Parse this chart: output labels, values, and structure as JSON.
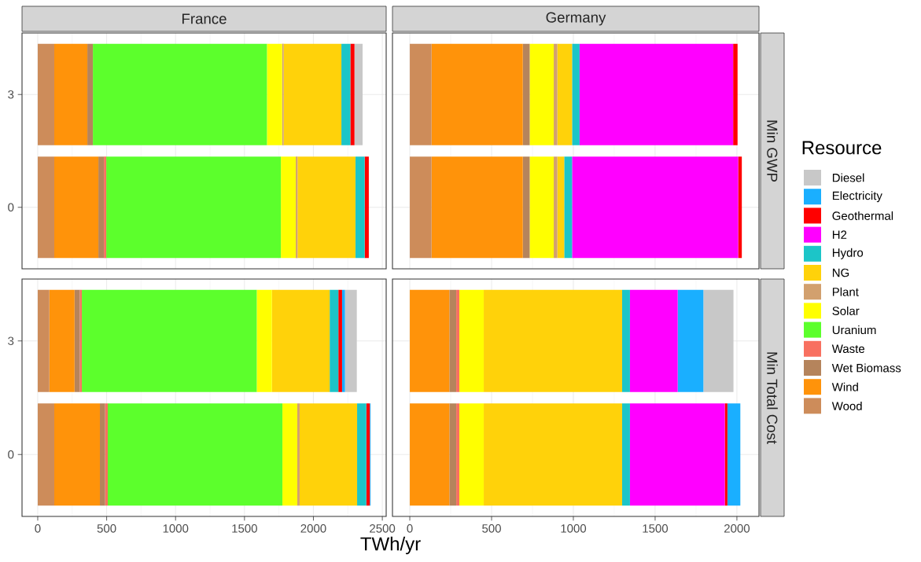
{
  "chart_data": [
    {
      "type": "bar",
      "orientation": "horizontal",
      "stacked": true,
      "title": "France",
      "categories": [
        "3",
        "0"
      ],
      "xlim": [
        -114,
        2528
      ],
      "xticks": [
        0,
        500,
        1000,
        1500,
        2000,
        2500
      ],
      "grid": true,
      "tick_labels": "y",
      "series": [
        {
          "color": "#cd8c5a",
          "values": [
            120,
            120
          ]
        },
        {
          "color": "#ff930a",
          "values": [
            240,
            320
          ]
        },
        {
          "color": "#b5845c",
          "values": [
            40,
            40
          ]
        },
        {
          "color": "#f87060",
          "values": [
            0,
            17
          ]
        },
        {
          "color": "#5cff2c",
          "values": [
            1263,
            1267
          ]
        },
        {
          "color": "#ffff00",
          "values": [
            110,
            108
          ]
        },
        {
          "color": "#d2a06e",
          "values": [
            11,
            13
          ]
        },
        {
          "color": "#ffd20a",
          "values": [
            419,
            420
          ]
        },
        {
          "color": "#1cc5c8",
          "values": [
            65,
            67
          ]
        },
        {
          "color": "#ff00ff",
          "values": [
            0,
            0
          ]
        },
        {
          "color": "#ff0000",
          "values": [
            30,
            30
          ]
        },
        {
          "color": "#1aafff",
          "values": [
            0,
            0
          ]
        },
        {
          "color": "#c8c8c8",
          "values": [
            59,
            0
          ]
        }
      ]
    },
    {
      "type": "bar",
      "orientation": "horizontal",
      "stacked": true,
      "title": "Germany",
      "y2label": "Min GWP",
      "legend": "right",
      "legend_title": "Resource",
      "categories": [
        "3",
        "0"
      ],
      "xlim": [
        -106,
        2135
      ],
      "xticks": [
        0,
        500,
        1000,
        1500,
        2000
      ],
      "grid": true,
      "tick_labels": false,
      "series": [
        {
          "name": "Wood",
          "color": "#cd8c5a",
          "values": [
            133,
            133
          ]
        },
        {
          "name": "Wind",
          "color": "#ff930a",
          "values": [
            558,
            558
          ]
        },
        {
          "name": "Wet Biomass",
          "color": "#b5845c",
          "values": [
            42,
            42
          ]
        },
        {
          "name": "Waste",
          "color": "#f87060",
          "values": [
            0,
            0
          ]
        },
        {
          "name": "Uranium",
          "color": "#5cff2c",
          "values": [
            0,
            0
          ]
        },
        {
          "name": "Solar",
          "color": "#ffff00",
          "values": [
            147,
            147
          ]
        },
        {
          "name": "Plant",
          "color": "#d2a06e",
          "values": [
            22,
            22
          ]
        },
        {
          "name": "NG",
          "color": "#ffd20a",
          "values": [
            90,
            42
          ]
        },
        {
          "name": "Hydro",
          "color": "#1cc5c8",
          "values": [
            46,
            48
          ]
        },
        {
          "name": "H2",
          "color": "#ff00ff",
          "values": [
            939,
            1016
          ]
        },
        {
          "name": "Geothermal",
          "color": "#ff0000",
          "values": [
            27,
            22
          ]
        },
        {
          "name": "Electricity",
          "color": "#1aafff",
          "values": [
            0,
            0
          ]
        },
        {
          "name": "Diesel",
          "color": "#c8c8c8",
          "values": [
            0,
            0
          ]
        }
      ]
    },
    {
      "type": "bar",
      "orientation": "horizontal",
      "stacked": true,
      "xlabel": "TWh/yr",
      "categories": [
        "3",
        "0"
      ],
      "xlim": [
        -114,
        2528
      ],
      "xticks": [
        0,
        500,
        1000,
        1500,
        2000,
        2500
      ],
      "grid": true,
      "series": [
        {
          "color": "#cd8c5a",
          "values": [
            84,
            120
          ]
        },
        {
          "color": "#ff930a",
          "values": [
            183,
            331
          ]
        },
        {
          "color": "#b5845c",
          "values": [
            38,
            38
          ]
        },
        {
          "color": "#f87060",
          "values": [
            15,
            19
          ]
        },
        {
          "color": "#5cff2c",
          "values": [
            1269,
            1267
          ]
        },
        {
          "color": "#ffff00",
          "values": [
            110,
            108
          ]
        },
        {
          "color": "#d2a06e",
          "values": [
            0,
            17
          ]
        },
        {
          "color": "#ffd20a",
          "values": [
            419,
            417
          ]
        },
        {
          "color": "#1cc5c8",
          "values": [
            63,
            67
          ]
        },
        {
          "color": "#ff00ff",
          "values": [
            0,
            0
          ]
        },
        {
          "color": "#ff0000",
          "values": [
            27,
            25
          ]
        },
        {
          "color": "#1aafff",
          "values": [
            21,
            6
          ]
        },
        {
          "color": "#c8c8c8",
          "values": [
            86,
            0
          ]
        }
      ]
    },
    {
      "type": "bar",
      "orientation": "horizontal",
      "stacked": true,
      "y2label": "Min Total Cost",
      "categories": [
        "3",
        "0"
      ],
      "xlim": [
        -106,
        2135
      ],
      "xticks": [
        0,
        500,
        1000,
        1500,
        2000
      ],
      "grid": true,
      "tick_labels": "x",
      "series": [
        {
          "color": "#cd8c5a",
          "values": [
            0,
            0
          ]
        },
        {
          "color": "#ff930a",
          "values": [
            242,
            242
          ]
        },
        {
          "color": "#b5845c",
          "values": [
            42,
            42
          ]
        },
        {
          "color": "#f87060",
          "values": [
            19,
            19
          ]
        },
        {
          "color": "#5cff2c",
          "values": [
            0,
            0
          ]
        },
        {
          "color": "#ffff00",
          "values": [
            149,
            149
          ]
        },
        {
          "color": "#d2a06e",
          "values": [
            0,
            0
          ]
        },
        {
          "color": "#ffd20a",
          "values": [
            846,
            846
          ]
        },
        {
          "color": "#1cc5c8",
          "values": [
            48,
            48
          ]
        },
        {
          "color": "#ff00ff",
          "values": [
            292,
            580
          ]
        },
        {
          "color": "#ff0000",
          "values": [
            0,
            16
          ]
        },
        {
          "color": "#1aafff",
          "values": [
            157,
            79
          ]
        },
        {
          "color": "#c8c8c8",
          "values": [
            184,
            0
          ]
        }
      ]
    }
  ]
}
